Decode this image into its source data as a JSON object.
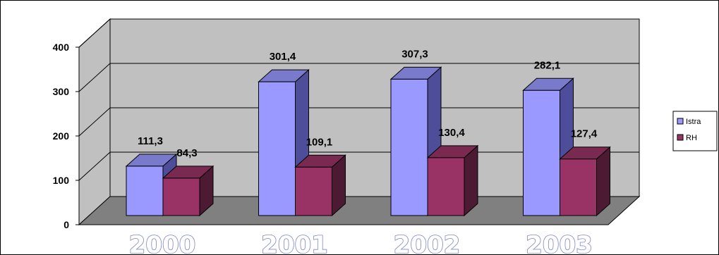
{
  "chart_data": {
    "type": "bar",
    "title": "",
    "xlabel": "",
    "ylabel": "",
    "categories": [
      "2000",
      "2001",
      "2002",
      "2003"
    ],
    "series": [
      {
        "name": "Istra",
        "values": [
          111.3,
          301.4,
          307.3,
          282.1
        ],
        "labels": [
          "111,3",
          "301,4",
          "307,3",
          "282,1"
        ],
        "color": "#9999ff",
        "side_color": "#4d4d99",
        "top_color": "#7a7acc"
      },
      {
        "name": "RH",
        "values": [
          84.3,
          109.1,
          130.4,
          127.4
        ],
        "labels": [
          "84,3",
          "109,1",
          "130,4",
          "127,4"
        ],
        "color": "#993366",
        "side_color": "#4d1a33",
        "top_color": "#7a2951"
      }
    ],
    "ylim": [
      0,
      400
    ],
    "yticks": [
      "0",
      "100",
      "200",
      "300",
      "400"
    ],
    "grid": true,
    "legend": "right",
    "style": "3d-clustered-column",
    "colors": {
      "wall": "#c0c0c0",
      "floor": "#808080"
    }
  }
}
